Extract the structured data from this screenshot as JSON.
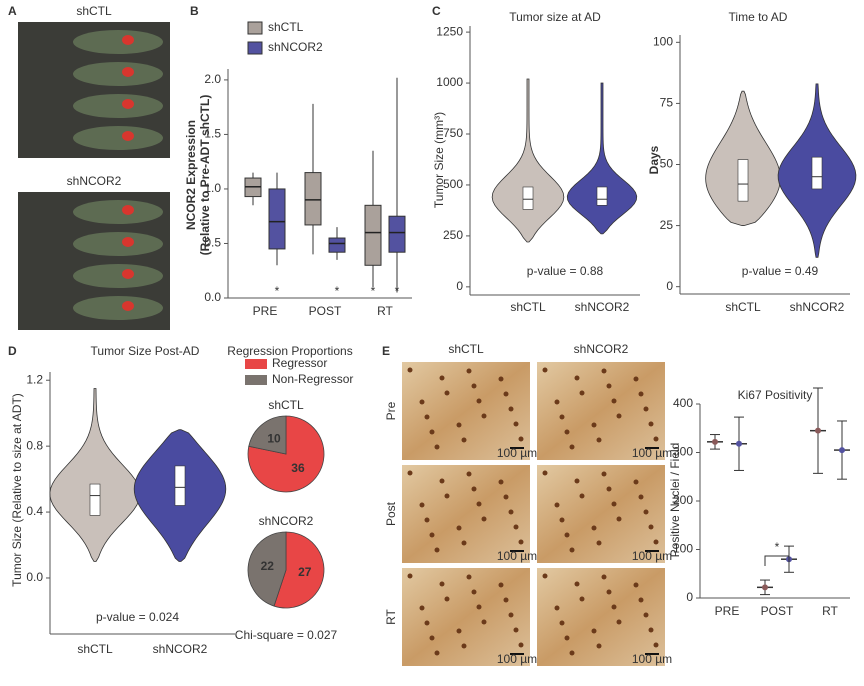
{
  "figure": {
    "panel_labels": [
      "A",
      "B",
      "C",
      "D",
      "E"
    ]
  },
  "images": {
    "mouse_labels": [
      "shCTL",
      "shNCOR2"
    ],
    "ihc_columns": [
      "shCTL",
      "shNCOR2"
    ],
    "ihc_rows": [
      "Pre",
      "Post",
      "RT"
    ],
    "scale_bar": "100 µm"
  },
  "chart_data": [
    {
      "type": "box",
      "ylabel": [
        "NCOR2 Expression",
        "(Relative to Pre-ADT shCTL)"
      ],
      "categories": [
        "PRE",
        "POST",
        "RT"
      ],
      "series": [
        {
          "name": "shCTL",
          "color": "#aaa19b",
          "values": [
            {
              "min": 0.85,
              "q1": 0.93,
              "median": 1.02,
              "q3": 1.1,
              "max": 1.15
            },
            {
              "min": 0.4,
              "q1": 0.67,
              "median": 0.9,
              "q3": 1.15,
              "max": 1.78
            },
            {
              "min": 0.1,
              "q1": 0.3,
              "median": 0.6,
              "q3": 0.85,
              "max": 1.35
            }
          ],
          "significance": [
            null,
            null,
            "*"
          ]
        },
        {
          "name": "shNCOR2",
          "color": "#5352a0",
          "values": [
            {
              "min": 0.3,
              "q1": 0.45,
              "median": 0.7,
              "q3": 1.0,
              "max": 1.15
            },
            {
              "min": 0.35,
              "q1": 0.42,
              "median": 0.5,
              "q3": 0.55,
              "max": 0.65
            },
            {
              "min": 0.05,
              "q1": 0.42,
              "median": 0.6,
              "q3": 0.75,
              "max": 2.02
            }
          ],
          "significance": [
            "*",
            "*",
            "*"
          ]
        }
      ],
      "ylim": [
        0,
        2.1
      ],
      "yticks": [
        {
          "value": 0,
          "label": "0.0"
        },
        {
          "value": 0.5,
          "label": "0.5"
        },
        {
          "value": 1,
          "label": "1.0"
        },
        {
          "value": 1.5,
          "label": "1.5"
        },
        {
          "value": 2,
          "label": "2.0"
        }
      ]
    },
    {
      "type": "violin",
      "title": "Tumor size at AD",
      "ylabel": "Tumor Size (mm³)",
      "categories": [
        "shCTL",
        "shNCOR2"
      ],
      "colors": [
        "#c9c0ba",
        "#4a4ba0"
      ],
      "values": [
        {
          "min": 220,
          "q1": 380,
          "median": 430,
          "q3": 490,
          "max": 1020
        },
        {
          "min": 260,
          "q1": 400,
          "median": 430,
          "q3": 490,
          "max": 1000
        }
      ],
      "annotation": "p-value = 0.88",
      "ylim": [
        -40,
        1280
      ],
      "yticks": [
        0,
        250,
        500,
        750,
        1000,
        1250
      ]
    },
    {
      "type": "violin",
      "title": "Time to AD",
      "ylabel": "Days",
      "categories": [
        "shCTL",
        "shNCOR2"
      ],
      "colors": [
        "#c9c0ba",
        "#4a4ba0"
      ],
      "values": [
        {
          "min": 25,
          "q1": 35,
          "median": 42,
          "q3": 52,
          "max": 80
        },
        {
          "min": 12,
          "q1": 40,
          "median": 45,
          "q3": 53,
          "max": 83
        }
      ],
      "annotation": "p-value = 0.49",
      "ylim": [
        -3,
        103
      ],
      "yticks": [
        0,
        25,
        50,
        75,
        100
      ]
    },
    {
      "type": "violin",
      "title": "Tumor Size Post-AD",
      "ylabel": "Tumor Size (Relative to size at ADT)",
      "categories": [
        "shCTL",
        "shNCOR2"
      ],
      "colors": [
        "#c9c0ba",
        "#4a4ba0"
      ],
      "values": [
        {
          "min": 0.1,
          "q1": 0.38,
          "median": 0.5,
          "q3": 0.57,
          "max": 1.15
        },
        {
          "min": 0.1,
          "q1": 0.44,
          "median": 0.55,
          "q3": 0.68,
          "max": 0.9
        }
      ],
      "annotation": "p-value = 0.024",
      "ylim": [
        -0.34,
        1.25
      ],
      "yticks": [
        {
          "value": 0,
          "label": "0.0"
        },
        {
          "value": 0.4,
          "label": "0.4"
        },
        {
          "value": 0.8,
          "label": "0.8"
        },
        {
          "value": 1.2,
          "label": "1.2"
        }
      ]
    },
    {
      "type": "pie",
      "title": "Regression Proportions",
      "categories": [
        "Regressor",
        "Non-Regressor"
      ],
      "colors": [
        "#e84646",
        "#7a736e"
      ],
      "pies": [
        {
          "title": "shCTL",
          "values": [
            36,
            10
          ]
        },
        {
          "title": "shNCOR2",
          "values": [
            27,
            22
          ]
        }
      ],
      "annotation": "Chi-square = 0.027"
    },
    {
      "type": "errorbar",
      "title": "Ki67 Positivity",
      "ylabel": "Positive Nuclei / Field",
      "categories": [
        "PRE",
        "POST",
        "RT"
      ],
      "series": [
        {
          "name": "shCTL",
          "color": "#8a5a5a",
          "values": [
            322,
            22,
            345
          ],
          "errors": [
            15,
            15,
            88
          ]
        },
        {
          "name": "shNCOR2",
          "color": "#5352a0",
          "values": [
            318,
            80,
            305
          ],
          "errors": [
            55,
            27,
            60
          ]
        }
      ],
      "annotation": "*",
      "ylim": [
        0,
        400
      ],
      "yticks": [
        0,
        100,
        200,
        300,
        400
      ]
    }
  ]
}
